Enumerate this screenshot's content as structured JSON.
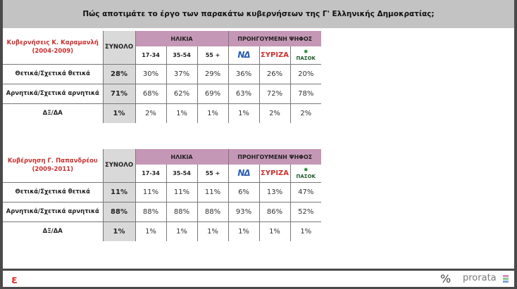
{
  "title": "Πώς αποτιμάτε το έργο των παρακάτω κυβερνήσεων της Γ' Ελληνικής Δημοκρατίας;",
  "headers": {
    "total": "ΣΥΝΟΛΟ",
    "age": "ΗΛΙΚΙΑ",
    "prev_vote": "ΠΡΟΗΓΟΥΜΕΝΗ ΨΗΦΟΣ",
    "ages": [
      "17-34",
      "35-54",
      "55 +"
    ],
    "parties": [
      "ΝΔ",
      "ΣΥΡΙΖΑ",
      "ΠΑΣΟΚ"
    ]
  },
  "tables": [
    {
      "title_line1": "Κυβερνήσεις Κ. Καραμανλή",
      "title_line2": "(2004-2009)",
      "rows": [
        {
          "label": "Θετικά/Σχετικά θετικά",
          "total": "28%",
          "values": [
            "30%",
            "37%",
            "29%",
            "36%",
            "26%",
            "20%"
          ]
        },
        {
          "label": "Αρνητικά/Σχετικά αρνητικά",
          "total": "71%",
          "values": [
            "68%",
            "62%",
            "69%",
            "63%",
            "72%",
            "78%"
          ]
        },
        {
          "label": "ΔΞ/ΔΑ",
          "total": "1%",
          "values": [
            "2%",
            "1%",
            "1%",
            "1%",
            "2%",
            "2%"
          ]
        }
      ]
    },
    {
      "title_line1": "Κυβέρνηση Γ. Παπανδρέου",
      "title_line2": "(2009-2011)",
      "rows": [
        {
          "label": "Θετικά/Σχετικά θετικά",
          "total": "11%",
          "values": [
            "11%",
            "11%",
            "11%",
            "6%",
            "13%",
            "47%"
          ]
        },
        {
          "label": "Αρνητικά/Σχετικά αρνητικά",
          "total": "88%",
          "values": [
            "88%",
            "88%",
            "88%",
            "93%",
            "86%",
            "52%"
          ]
        },
        {
          "label": "ΔΞ/ΔΑ",
          "total": "1%",
          "values": [
            "1%",
            "1%",
            "1%",
            "1%",
            "1%",
            "1%"
          ]
        }
      ]
    }
  ],
  "footer": {
    "percent_symbol": "%",
    "brand": "prorata"
  },
  "colors": {
    "header": "#c597b6",
    "total_col": "#d9d9d9",
    "title_bar": "#c3c3c3",
    "table_title": "#c8302f"
  }
}
